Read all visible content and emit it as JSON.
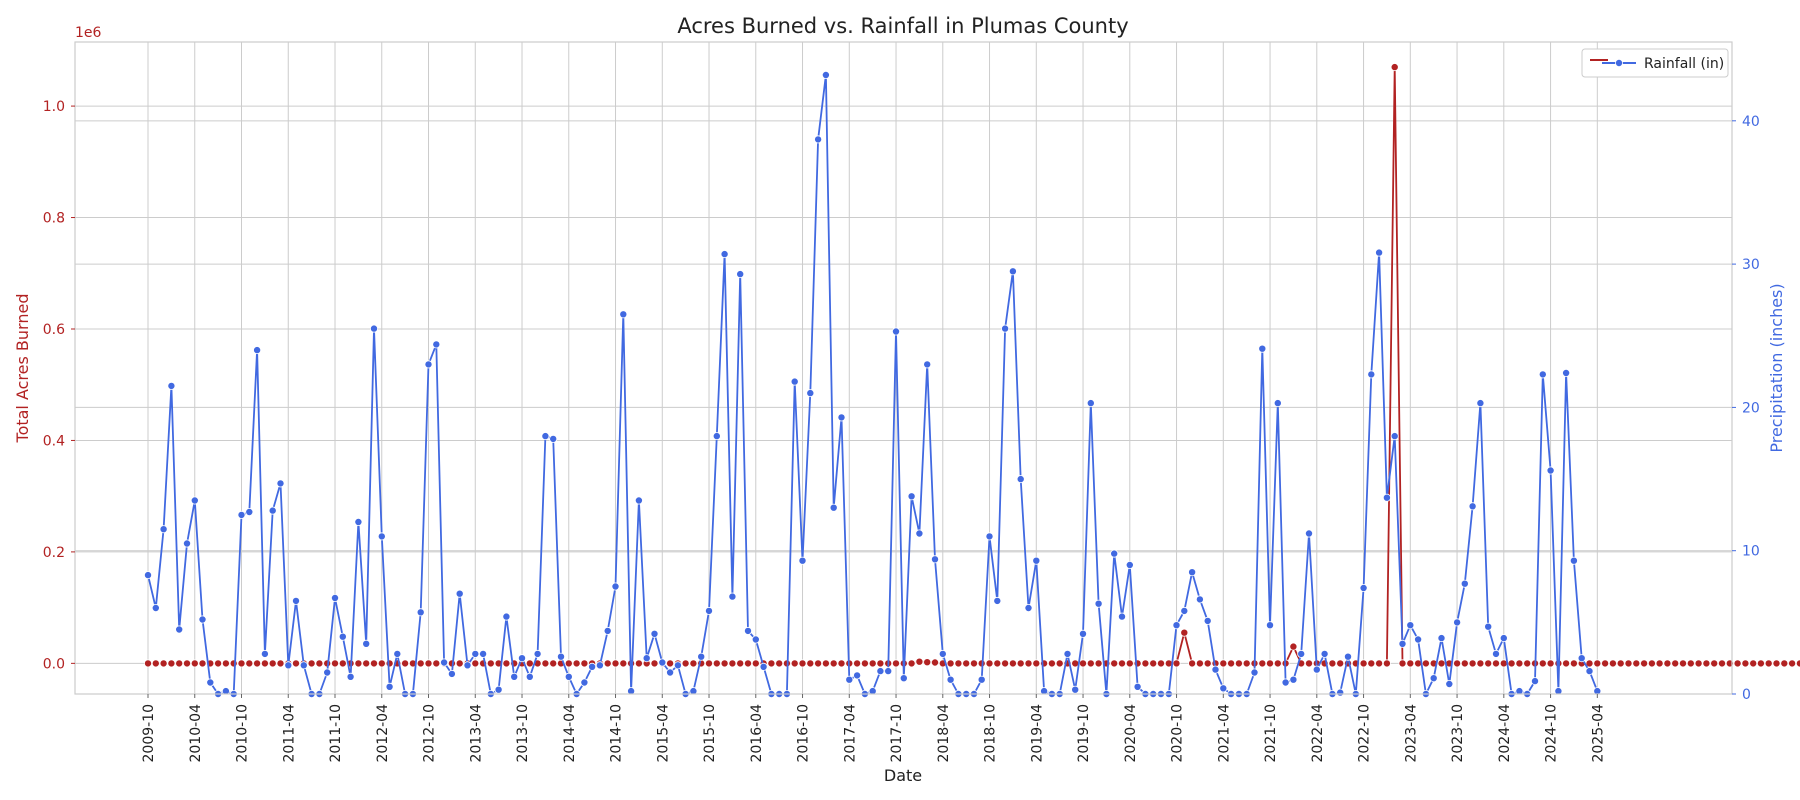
{
  "chart_data": {
    "type": "line",
    "title": "Acres Burned vs. Rainfall in Plumas County",
    "xlabel": "Date",
    "y_left": {
      "label": "Total Acres Burned",
      "ylim": [
        -55000,
        1115000
      ],
      "ticks": [
        0,
        200000,
        400000,
        600000,
        800000,
        1000000
      ],
      "tick_labels": [
        "0.0",
        "0.2",
        "0.4",
        "0.6",
        "0.8",
        "1.0"
      ],
      "offset_label": "1e6",
      "color": "#b22222"
    },
    "y_right": {
      "label": "Precipitation (inches)",
      "ylim": [
        0,
        45.5
      ],
      "ticks": [
        0,
        10,
        20,
        30,
        40
      ],
      "tick_labels": [
        "0",
        "10",
        "20",
        "30",
        "40"
      ],
      "color": "#4169e1"
    },
    "x_start": "2009-10",
    "x_tick_labels": [
      "2009-10",
      "2010-04",
      "2010-10",
      "2011-04",
      "2011-10",
      "2012-04",
      "2012-10",
      "2013-04",
      "2013-10",
      "2014-04",
      "2014-10",
      "2015-04",
      "2015-10",
      "2016-04",
      "2016-10",
      "2017-04",
      "2017-10",
      "2018-04",
      "2018-10",
      "2019-04",
      "2019-10",
      "2020-04",
      "2020-10",
      "2021-04",
      "2021-10",
      "2022-04",
      "2022-10",
      "2023-04",
      "2023-10",
      "2024-04",
      "2024-10",
      "2025-04"
    ],
    "grid": true,
    "legend": {
      "position": "top-right",
      "entries": [
        "Rainfall (in)"
      ]
    },
    "series": [
      {
        "name": "Acres Burned",
        "axis": "left",
        "color": "#b22222",
        "values": [
          0,
          0,
          0,
          0,
          0,
          0,
          0,
          0,
          0,
          0,
          0,
          0,
          0,
          0,
          0,
          0,
          0,
          0,
          0,
          0,
          0,
          0,
          0,
          0,
          0,
          0,
          0,
          0,
          0,
          0,
          0,
          0,
          0,
          0,
          0,
          0,
          0,
          0,
          0,
          0,
          0,
          0,
          0,
          0,
          0,
          0,
          0,
          0,
          0,
          0,
          0,
          0,
          0,
          0,
          0,
          0,
          0,
          0,
          0,
          0,
          0,
          0,
          0,
          0,
          0,
          0,
          0,
          0,
          0,
          0,
          0,
          0,
          0,
          0,
          0,
          0,
          0,
          0,
          0,
          0,
          0,
          0,
          0,
          0,
          0,
          0,
          0,
          0,
          0,
          0,
          0,
          0,
          0,
          0,
          0,
          0,
          0,
          0,
          0,
          3000,
          2000,
          1500,
          0,
          0,
          0,
          0,
          0,
          0,
          0,
          0,
          0,
          0,
          0,
          0,
          0,
          0,
          0,
          0,
          0,
          0,
          0,
          0,
          0,
          0,
          0,
          0,
          0,
          0,
          0,
          0,
          0,
          0,
          0,
          55000,
          0,
          0,
          0,
          0,
          0,
          0,
          0,
          0,
          0,
          0,
          0,
          0,
          0,
          30000,
          0,
          0,
          0,
          0,
          0,
          0,
          0,
          0,
          0,
          0,
          0,
          0,
          1070000,
          0,
          0,
          0,
          0,
          0,
          0,
          0,
          0,
          0,
          0,
          0,
          0,
          0,
          0,
          0,
          0,
          0,
          0,
          0,
          0,
          0,
          0,
          0,
          0,
          0,
          0,
          0,
          0,
          0,
          0,
          0,
          0,
          0,
          0,
          0,
          0,
          0,
          0,
          0,
          0,
          0,
          0,
          0,
          0,
          0,
          0,
          0,
          0,
          0,
          0,
          0,
          0,
          0,
          0,
          0,
          3000,
          0,
          0,
          0,
          0,
          0,
          0,
          0,
          0,
          0,
          0,
          0
        ]
      },
      {
        "name": "Rainfall (in)",
        "axis": "right",
        "color": "#4169e1",
        "values": [
          8.3,
          6.0,
          11.5,
          21.5,
          4.5,
          10.5,
          13.5,
          5.2,
          0.8,
          0.0,
          0.2,
          0.0,
          12.5,
          12.7,
          24.0,
          2.8,
          12.8,
          14.7,
          2.0,
          6.5,
          2.0,
          0.0,
          0.0,
          1.5,
          6.7,
          4.0,
          1.2,
          12.0,
          3.5,
          25.5,
          11.0,
          0.5,
          2.8,
          0.0,
          0.0,
          5.7,
          23.0,
          24.4,
          2.2,
          1.4,
          7.0,
          2.0,
          2.8,
          2.8,
          0.0,
          0.3,
          5.4,
          1.2,
          2.5,
          1.2,
          2.8,
          18.0,
          17.8,
          2.6,
          1.2,
          0.0,
          0.8,
          1.9,
          2.0,
          4.4,
          7.5,
          26.5,
          0.2,
          13.5,
          2.5,
          4.2,
          2.2,
          1.5,
          2.0,
          0.0,
          0.2,
          2.6,
          5.8,
          18.0,
          30.7,
          6.8,
          29.3,
          4.4,
          3.8,
          1.9,
          0.0,
          0.0,
          0.0,
          21.8,
          9.3,
          21.0,
          38.7,
          43.2,
          13.0,
          19.3,
          1.0,
          1.3,
          0.0,
          0.2,
          1.6,
          1.6,
          25.3,
          1.1,
          13.8,
          11.2,
          23.0,
          9.4,
          2.8,
          1.0,
          0.0,
          0.0,
          0.0,
          1.0,
          11.0,
          6.5,
          25.5,
          29.5,
          15.0,
          6.0,
          9.3,
          0.2,
          0.0,
          0.0,
          2.8,
          0.3,
          4.2,
          20.3,
          6.3,
          0.0,
          9.8,
          5.4,
          9.0,
          0.5,
          0.0,
          0.0,
          0.0,
          0.0,
          4.8,
          5.8,
          8.5,
          6.6,
          5.1,
          1.7,
          0.4,
          0.0,
          0.0,
          0.0,
          1.5,
          24.1,
          4.8,
          20.3,
          0.8,
          1.0,
          2.8,
          11.2,
          1.7,
          2.8,
          0.0,
          0.1,
          2.6,
          0.0,
          7.4,
          22.3,
          30.8,
          13.7,
          18.0,
          3.5,
          4.8,
          3.8,
          0.0,
          1.1,
          3.9,
          0.7,
          5.0,
          7.7,
          13.1,
          20.3,
          4.7,
          2.8,
          3.9,
          0.0,
          0.2,
          0.0,
          0.9,
          22.3,
          15.6,
          0.2,
          22.4,
          9.3,
          2.5,
          1.6,
          0.2
        ]
      }
    ]
  }
}
